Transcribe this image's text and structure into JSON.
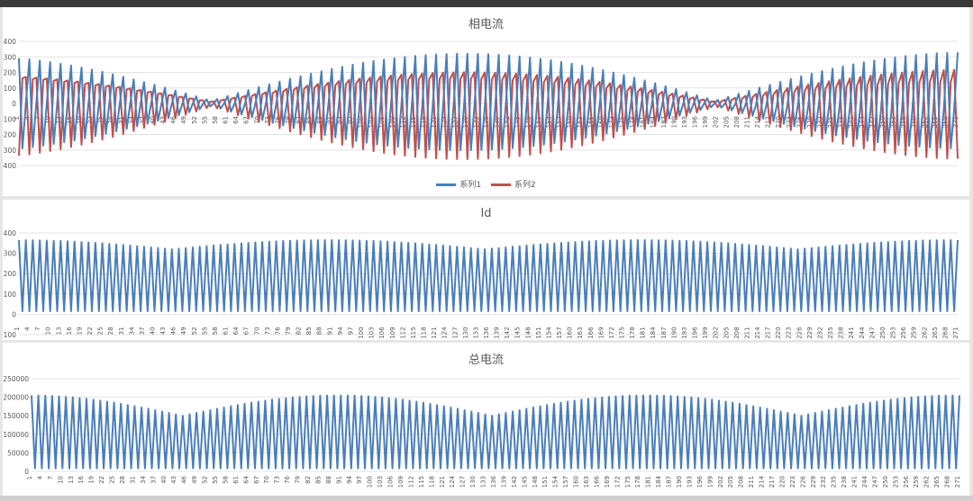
{
  "charts": [
    {
      "title": "相电流"
    },
    {
      "title": "Id"
    },
    {
      "title": "总电流"
    }
  ],
  "colors": {
    "series1": "#4a7ebb",
    "series2": "#c0504d",
    "grid": "#e3e3e3",
    "axis": "#595959"
  },
  "chart_data": [
    {
      "type": "line",
      "title": "相电流",
      "ylim": [
        -400,
        400
      ],
      "yticks": [
        -400,
        -300,
        -200,
        -100,
        0,
        100,
        200,
        300,
        400
      ],
      "x_range": [
        1,
        271
      ],
      "xtick_step": 3,
      "legend": "bottom",
      "grid": true,
      "series": [
        {
          "name": "系列1",
          "color": "#4a7ebb",
          "amplitude_approx": 340
        },
        {
          "name": "系列2",
          "color": "#c0504d",
          "amplitude_approx": 340
        }
      ]
    },
    {
      "type": "line",
      "title": "Id",
      "ylim": [
        -100,
        400
      ],
      "yticks": [
        -100,
        0,
        100,
        200,
        300,
        400
      ],
      "x_range": [
        1,
        271
      ],
      "xtick_step": 3,
      "grid": true,
      "series": [
        {
          "name": "",
          "color": "#4a7ebb",
          "min_approx": 10,
          "max_approx": 370
        }
      ]
    },
    {
      "type": "line",
      "title": "总电流",
      "ylim": [
        0,
        250000
      ],
      "yticks": [
        0,
        50000,
        100000,
        150000,
        200000,
        250000
      ],
      "x_range": [
        1,
        271
      ],
      "xtick_step": 3,
      "grid": true,
      "series": [
        {
          "name": "",
          "color": "#4a7ebb",
          "min_approx": 5000,
          "max_approx": 210000
        }
      ]
    }
  ]
}
